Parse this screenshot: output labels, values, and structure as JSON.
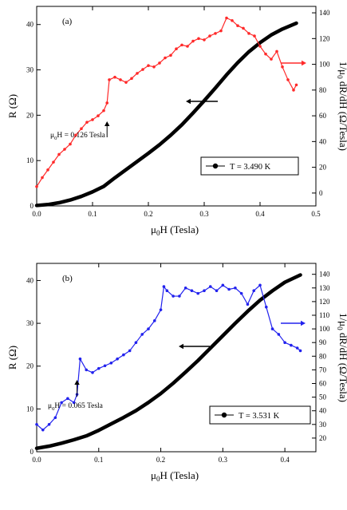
{
  "chart_data": [
    {
      "type": "line",
      "panel_label": "(a)",
      "xlabel_main": "μ",
      "xlabel_sub": "0",
      "xlabel_rest": "H (Tesla)",
      "ylabel_left": "R (Ω)",
      "ylabel_right_pre": "1/μ",
      "ylabel_right_sub": "0",
      "ylabel_right_rest": " dR/dH (Ω/Tesla)",
      "xlim": [
        0,
        0.5
      ],
      "ylim_left": [
        0,
        44
      ],
      "ylim_right": [
        -10,
        145
      ],
      "x_ticks": [
        "0.0",
        "0.1",
        "0.2",
        "0.3",
        "0.4",
        "0.5"
      ],
      "y_left_ticks": [
        "0",
        "10",
        "20",
        "30",
        "40"
      ],
      "y_right_ticks": [
        "0",
        "20",
        "40",
        "60",
        "80",
        "100",
        "120",
        "140"
      ],
      "legend": {
        "label": "T = 3.490 K",
        "placement": "lower-right"
      },
      "annotation": {
        "pre": "μ",
        "sub": "0",
        "rest": "H = 0.126 Tesla",
        "x": 0.126
      },
      "series": [
        {
          "name": "R",
          "axis": "left",
          "color": "#000000",
          "x": [
            0,
            0.02,
            0.04,
            0.06,
            0.08,
            0.1,
            0.12,
            0.14,
            0.16,
            0.18,
            0.2,
            0.22,
            0.24,
            0.26,
            0.28,
            0.3,
            0.32,
            0.34,
            0.36,
            0.38,
            0.4,
            0.42,
            0.44,
            0.465
          ],
          "y": [
            0.1,
            0.3,
            0.7,
            1.3,
            2.1,
            3.1,
            4.3,
            6.2,
            8.0,
            9.8,
            11.6,
            13.5,
            15.6,
            17.9,
            20.5,
            23.2,
            26.0,
            28.9,
            31.6,
            34.0,
            36.0,
            37.7,
            39.0,
            40.3
          ]
        },
        {
          "name": "1/μ0 dR/dH",
          "axis": "right",
          "color": "#ff2a2a",
          "x": [
            0.0,
            0.01,
            0.02,
            0.03,
            0.04,
            0.05,
            0.06,
            0.07,
            0.08,
            0.09,
            0.1,
            0.11,
            0.12,
            0.126,
            0.13,
            0.14,
            0.15,
            0.16,
            0.17,
            0.18,
            0.19,
            0.2,
            0.21,
            0.22,
            0.23,
            0.24,
            0.25,
            0.26,
            0.27,
            0.28,
            0.29,
            0.3,
            0.31,
            0.32,
            0.33,
            0.34,
            0.35,
            0.36,
            0.37,
            0.38,
            0.39,
            0.4,
            0.41,
            0.42,
            0.43,
            0.44,
            0.45,
            0.46,
            0.465
          ],
          "y": [
            5,
            12,
            18,
            24,
            30,
            34,
            38,
            45,
            50,
            55,
            57,
            60,
            64,
            70,
            88,
            90,
            88,
            86,
            89,
            93,
            96,
            99,
            98,
            101,
            105,
            107,
            112,
            115,
            114,
            118,
            120,
            119,
            122,
            124,
            126,
            136,
            134,
            130,
            128,
            124,
            122,
            114,
            108,
            104,
            110,
            98,
            88,
            80,
            84
          ]
        }
      ]
    },
    {
      "type": "line",
      "panel_label": "(b)",
      "xlabel_main": "μ",
      "xlabel_sub": "0",
      "xlabel_rest": "H (Tesla)",
      "ylabel_left": "R (Ω)",
      "ylabel_right_pre": "1/μ",
      "ylabel_right_sub": "0",
      "ylabel_right_rest": " dR/dH (Ω/Tesla)",
      "xlim": [
        0,
        0.45
      ],
      "ylim_left": [
        0,
        44
      ],
      "ylim_right": [
        10,
        148
      ],
      "x_ticks": [
        "0.0",
        "0.1",
        "0.2",
        "0.3",
        "0.4"
      ],
      "y_left_ticks": [
        "0",
        "10",
        "20",
        "30",
        "40"
      ],
      "y_right_ticks": [
        "20",
        "30",
        "40",
        "50",
        "60",
        "70",
        "80",
        "90",
        "100",
        "110",
        "120",
        "130",
        "140"
      ],
      "legend": {
        "label": "T = 3.531 K",
        "placement": "lower-right"
      },
      "annotation": {
        "pre": "μ",
        "sub": "0",
        "rest": "H = 0.065 Tesla",
        "x": 0.065
      },
      "series": [
        {
          "name": "R",
          "axis": "left",
          "color": "#000000",
          "x": [
            0,
            0.02,
            0.04,
            0.06,
            0.08,
            0.1,
            0.12,
            0.14,
            0.16,
            0.18,
            0.2,
            0.22,
            0.24,
            0.26,
            0.28,
            0.3,
            0.32,
            0.34,
            0.36,
            0.38,
            0.4,
            0.425
          ],
          "y": [
            0.8,
            1.3,
            2.0,
            2.8,
            3.7,
            5.0,
            6.5,
            8.0,
            9.6,
            11.5,
            13.6,
            16.0,
            18.6,
            21.3,
            24.2,
            27.1,
            30.0,
            32.8,
            35.4,
            37.6,
            39.6,
            41.3
          ]
        },
        {
          "name": "1/μ0 dR/dH",
          "axis": "right",
          "color": "#2222ee",
          "x": [
            0.0,
            0.01,
            0.02,
            0.03,
            0.04,
            0.05,
            0.06,
            0.065,
            0.07,
            0.08,
            0.09,
            0.1,
            0.11,
            0.12,
            0.13,
            0.14,
            0.15,
            0.16,
            0.17,
            0.18,
            0.19,
            0.2,
            0.205,
            0.21,
            0.22,
            0.23,
            0.24,
            0.25,
            0.26,
            0.27,
            0.28,
            0.29,
            0.3,
            0.31,
            0.32,
            0.33,
            0.34,
            0.35,
            0.36,
            0.37,
            0.38,
            0.39,
            0.4,
            0.41,
            0.42,
            0.425
          ],
          "y": [
            30,
            26,
            30,
            35,
            46,
            49,
            46,
            52,
            78,
            70,
            68,
            71,
            73,
            75,
            78,
            81,
            84,
            90,
            96,
            100,
            106,
            114,
            131,
            128,
            124,
            124,
            130,
            128,
            126,
            128,
            131,
            128,
            132,
            129,
            130,
            126,
            118,
            128,
            132,
            116,
            100,
            96,
            90,
            88,
            86,
            84
          ]
        }
      ]
    }
  ]
}
